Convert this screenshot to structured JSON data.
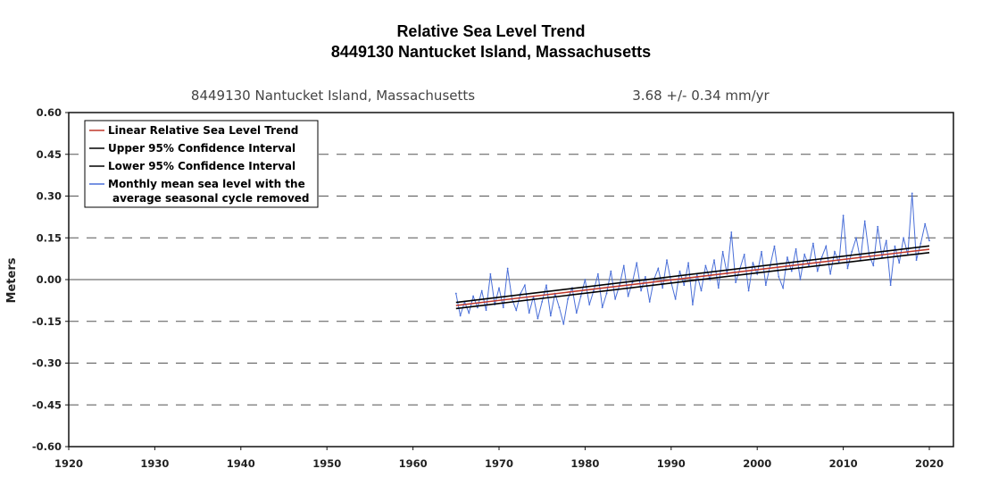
{
  "chart_data": {
    "type": "line",
    "title": "Relative Sea Level Trend",
    "subtitle": "8449130 Nantucket Island, Massachusetts",
    "plot_station": "8449130 Nantucket Island, Massachusetts",
    "trend_text": "3.68 +/-  0.34 mm/yr",
    "ylabel": "Meters",
    "xlabel": "",
    "xlim": [
      1920,
      2022.8
    ],
    "ylim": [
      -0.6,
      0.6
    ],
    "x_ticks": [
      "1920",
      "1930",
      "1940",
      "1950",
      "1960",
      "1970",
      "1980",
      "1990",
      "2000",
      "2010",
      "2020"
    ],
    "y_ticks": [
      "0.60",
      "0.45",
      "0.30",
      "0.15",
      "0.00",
      "-0.15",
      "-0.30",
      "-0.45",
      "-0.60"
    ],
    "y_tick_values": [
      0.6,
      0.45,
      0.3,
      0.15,
      0,
      -0.15,
      -0.3,
      -0.45,
      -0.6
    ],
    "x_tick_values": [
      1920,
      1930,
      1940,
      1950,
      1960,
      1970,
      1980,
      1990,
      2000,
      2010,
      2020
    ],
    "grid": "dashed horizontal lines, solid zero line",
    "legend_position": "top-left",
    "legend": [
      "Linear Relative Sea Level Trend",
      "Upper 95% Confidence Interval",
      "Lower 95% Confidence Interval",
      "Monthly mean sea level with the",
      "average seasonal cycle removed"
    ],
    "colors": {
      "trend": "#c0392b",
      "confidence": "#000000",
      "monthly": "#4a6fd8",
      "grid": "#555555"
    },
    "series": [
      {
        "name": "Linear Relative Sea Level Trend",
        "x": [
          1965,
          2020
        ],
        "y": [
          -0.093,
          0.109
        ]
      },
      {
        "name": "Upper 95% Confidence Interval",
        "x": [
          1965,
          2020
        ],
        "y": [
          -0.082,
          0.121
        ]
      },
      {
        "name": "Lower 95% Confidence Interval",
        "x": [
          1965,
          2020
        ],
        "y": [
          -0.104,
          0.097
        ]
      },
      {
        "name": "Monthly mean sea level with the average seasonal cycle removed",
        "x": [
          1965,
          1965.5,
          1966,
          1966.5,
          1967,
          1967.5,
          1968,
          1968.5,
          1969,
          1969.5,
          1970,
          1970.5,
          1971,
          1971.5,
          1972,
          1972.5,
          1973,
          1973.5,
          1974,
          1974.5,
          1975,
          1975.5,
          1976,
          1976.5,
          1977,
          1977.5,
          1978,
          1978.5,
          1979,
          1979.5,
          1980,
          1980.5,
          1981,
          1981.5,
          1982,
          1982.5,
          1983,
          1983.5,
          1984,
          1984.5,
          1985,
          1985.5,
          1986,
          1986.5,
          1987,
          1987.5,
          1988,
          1988.5,
          1989,
          1989.5,
          1990,
          1990.5,
          1991,
          1991.5,
          1992,
          1992.5,
          1993,
          1993.5,
          1994,
          1994.5,
          1995,
          1995.5,
          1996,
          1996.5,
          1997,
          1997.5,
          1998,
          1998.5,
          1999,
          1999.5,
          2000,
          2000.5,
          2001,
          2001.5,
          2002,
          2002.5,
          2003,
          2003.5,
          2004,
          2004.5,
          2005,
          2005.5,
          2006,
          2006.5,
          2007,
          2007.5,
          2008,
          2008.5,
          2009,
          2009.5,
          2010,
          2010.5,
          2011,
          2011.5,
          2012,
          2012.5,
          2013,
          2013.5,
          2014,
          2014.5,
          2015,
          2015.5,
          2016,
          2016.5,
          2017,
          2017.5,
          2018,
          2018.5,
          2019,
          2019.5,
          2020
        ],
        "y": [
          -0.05,
          -0.13,
          -0.08,
          -0.12,
          -0.06,
          -0.1,
          -0.04,
          -0.11,
          0.02,
          -0.09,
          -0.03,
          -0.1,
          0.04,
          -0.07,
          -0.11,
          -0.05,
          -0.02,
          -0.12,
          -0.06,
          -0.14,
          -0.08,
          -0.02,
          -0.13,
          -0.05,
          -0.1,
          -0.16,
          -0.07,
          -0.03,
          -0.12,
          -0.06,
          0.0,
          -0.09,
          -0.04,
          0.02,
          -0.1,
          -0.05,
          0.03,
          -0.07,
          -0.02,
          0.05,
          -0.06,
          -0.01,
          0.06,
          -0.04,
          0.01,
          -0.08,
          0.0,
          0.04,
          -0.03,
          0.07,
          -0.01,
          -0.07,
          0.03,
          -0.02,
          0.06,
          -0.09,
          0.02,
          -0.04,
          0.05,
          0.0,
          0.07,
          -0.03,
          0.1,
          0.02,
          0.17,
          -0.01,
          0.04,
          0.09,
          -0.04,
          0.06,
          0.02,
          0.1,
          -0.02,
          0.05,
          0.12,
          0.01,
          -0.03,
          0.08,
          0.03,
          0.11,
          0.0,
          0.09,
          0.05,
          0.13,
          0.03,
          0.08,
          0.12,
          0.02,
          0.1,
          0.06,
          0.23,
          0.04,
          0.1,
          0.15,
          0.07,
          0.21,
          0.09,
          0.05,
          0.19,
          0.08,
          0.14,
          -0.02,
          0.12,
          0.06,
          0.15,
          0.09,
          0.31,
          0.07,
          0.13,
          0.2,
          0.14
        ]
      }
    ]
  }
}
